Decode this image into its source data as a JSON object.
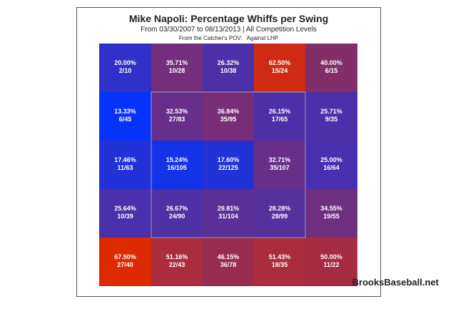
{
  "chart_data": {
    "type": "heatmap",
    "title": "Mike Napoli: Percentage Whiffs per Swing",
    "subtitle": "From 03/30/2007 to 08/13/2013 | All Competition Levels",
    "perspective": "From the Catcher's POV:",
    "split": "Against LHP",
    "grid": "5x5",
    "strike_zone": "inner 3x3",
    "color_scale": {
      "low": "#0033ff",
      "high": "#e02a00"
    },
    "cells": [
      [
        {
          "pct": 20.0,
          "label": "20.00%",
          "count": "2/10"
        },
        {
          "pct": 35.71,
          "label": "35.71%",
          "count": "10/28"
        },
        {
          "pct": 26.32,
          "label": "26.32%",
          "count": "10/38"
        },
        {
          "pct": 62.5,
          "label": "62.50%",
          "count": "15/24"
        },
        {
          "pct": 40.0,
          "label": "40.00%",
          "count": "6/15"
        }
      ],
      [
        {
          "pct": 13.33,
          "label": "13.33%",
          "count": "6/45"
        },
        {
          "pct": 32.53,
          "label": "32.53%",
          "count": "27/83"
        },
        {
          "pct": 36.84,
          "label": "36.84%",
          "count": "35/95"
        },
        {
          "pct": 26.15,
          "label": "26.15%",
          "count": "17/65"
        },
        {
          "pct": 25.71,
          "label": "25.71%",
          "count": "9/35"
        }
      ],
      [
        {
          "pct": 17.46,
          "label": "17.46%",
          "count": "11/63"
        },
        {
          "pct": 15.24,
          "label": "15.24%",
          "count": "16/105"
        },
        {
          "pct": 17.6,
          "label": "17.60%",
          "count": "22/125"
        },
        {
          "pct": 32.71,
          "label": "32.71%",
          "count": "35/107"
        },
        {
          "pct": 25.0,
          "label": "25.00%",
          "count": "16/64"
        }
      ],
      [
        {
          "pct": 25.64,
          "label": "25.64%",
          "count": "10/39"
        },
        {
          "pct": 26.67,
          "label": "26.67%",
          "count": "24/90"
        },
        {
          "pct": 29.81,
          "label": "29.81%",
          "count": "31/104"
        },
        {
          "pct": 28.28,
          "label": "28.28%",
          "count": "28/99"
        },
        {
          "pct": 34.55,
          "label": "34.55%",
          "count": "19/55"
        }
      ],
      [
        {
          "pct": 67.5,
          "label": "67.50%",
          "count": "27/40"
        },
        {
          "pct": 51.16,
          "label": "51.16%",
          "count": "22/43"
        },
        {
          "pct": 46.15,
          "label": "46.15%",
          "count": "36/78"
        },
        {
          "pct": 51.43,
          "label": "51.43%",
          "count": "18/35"
        },
        {
          "pct": 50.0,
          "label": "50.00%",
          "count": "11/22"
        }
      ]
    ]
  },
  "watermark": "BrooksBaseball.net"
}
